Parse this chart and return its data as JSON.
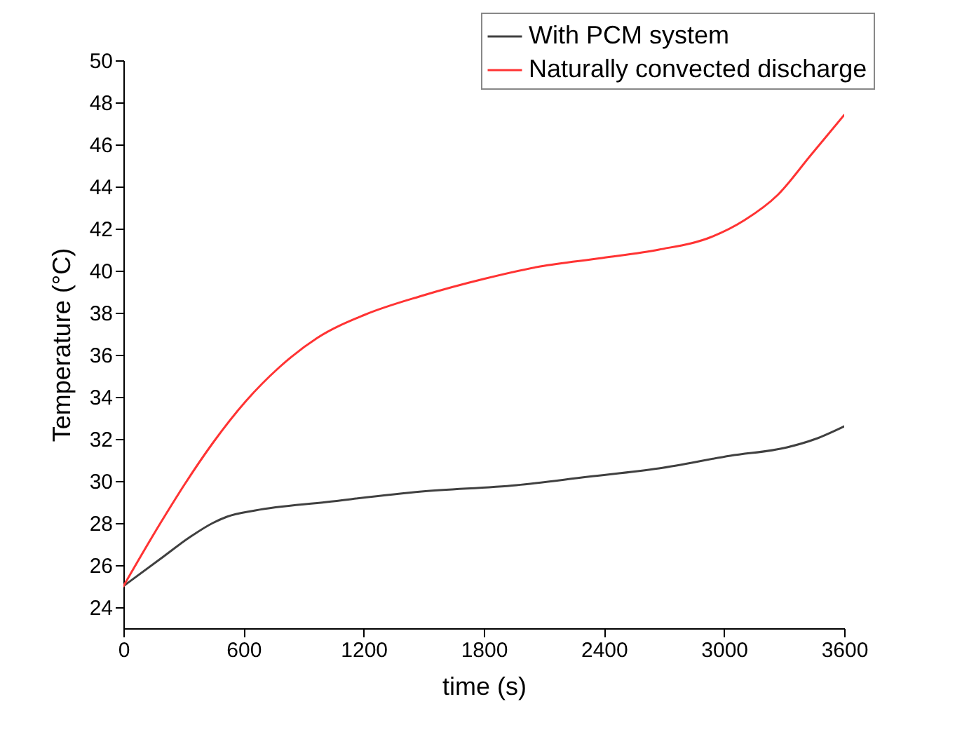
{
  "chart_data": {
    "type": "line",
    "xlabel": "time (s)",
    "ylabel": "Temperature (°C)",
    "xlim": [
      0,
      3600
    ],
    "xticks": [
      0,
      600,
      1200,
      1800,
      2400,
      3000,
      3600
    ],
    "ylim": [
      23,
      50
    ],
    "yticks": [
      24,
      26,
      28,
      30,
      32,
      34,
      36,
      38,
      40,
      42,
      44,
      46,
      48,
      50
    ],
    "grid": false,
    "legend": "top right",
    "marker": "none",
    "line_style": "solid",
    "series": [
      {
        "name": "With PCM system",
        "color": "#404040",
        "x": [
          0,
          185,
          327,
          446,
          517,
          659,
          1015,
          1489,
          1963,
          2319,
          2675,
          3031,
          3315,
          3457,
          3600
        ],
        "values": [
          25,
          26.3,
          27.3,
          28.0,
          28.3,
          28.6,
          29.0,
          29.5,
          29.8,
          30.2,
          30.6,
          31.2,
          31.6,
          32.0,
          32.6
        ]
      },
      {
        "name": "Naturally convected discharge",
        "color": "#ff3333",
        "x": [
          0,
          185,
          303,
          446,
          612,
          778,
          968,
          1205,
          1489,
          1797,
          2082,
          2390,
          2675,
          2936,
          3102,
          3268,
          3434,
          3600
        ],
        "values": [
          25,
          28.0,
          29.8,
          31.8,
          33.8,
          35.4,
          36.8,
          37.9,
          38.8,
          39.6,
          40.2,
          40.6,
          41.0,
          41.6,
          42.4,
          43.6,
          45.5,
          47.4
        ]
      }
    ]
  }
}
